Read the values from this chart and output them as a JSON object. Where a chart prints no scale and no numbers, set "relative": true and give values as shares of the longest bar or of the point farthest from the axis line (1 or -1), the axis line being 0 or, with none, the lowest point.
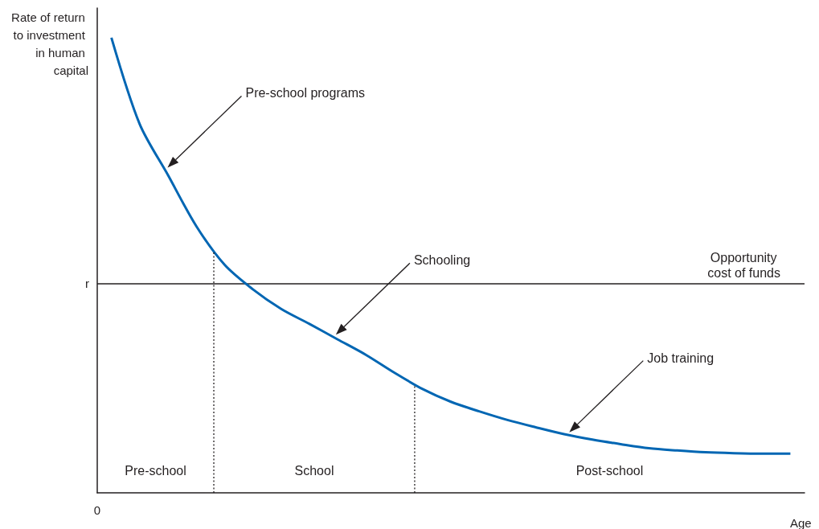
{
  "chart_data": {
    "type": "line",
    "relative": true,
    "ylabel": "Rate of return to investment in human capital",
    "xlabel": "Age",
    "categories": [
      null,
      null,
      null,
      null,
      null,
      null,
      null,
      null,
      null,
      null,
      null,
      null,
      null,
      null,
      null,
      null,
      null,
      null,
      null,
      null,
      null,
      null,
      null,
      null,
      null
    ],
    "series": [
      {
        "color": "#0066b3",
        "values": [
          1,
          0.81,
          0.698,
          0.586,
          0.501,
          0.447,
          0.404,
          0.371,
          0.337,
          0.303,
          0.264,
          0.228,
          0.2,
          0.179,
          0.16,
          0.144,
          0.129,
          0.117,
          0.107,
          0.098,
          0.093,
          0.089,
          0.087,
          0.086,
          0.086
        ]
      }
    ],
    "ref_lines": [
      {
        "axis": "y",
        "value": 0.459,
        "label": "Opportunity cost of funds",
        "color": "#231f20",
        "line_style": "solid"
      }
    ],
    "annotations": [
      "0",
      "r",
      "Pre-school programs",
      "Schooling",
      "Job training",
      "Pre-school",
      "School",
      "Post-school"
    ],
    "grid": false,
    "marker": "none",
    "line_style": "solid"
  }
}
